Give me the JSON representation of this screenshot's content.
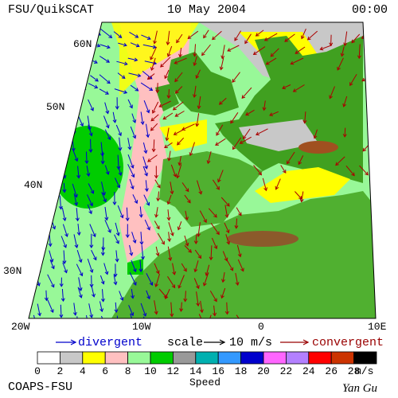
{
  "header": {
    "title": "FSU/QuikSCAT",
    "date": "10 May 2004",
    "time": "00:00"
  },
  "map": {
    "lat_labels": [
      "60N",
      "50N",
      "40N",
      "30N"
    ],
    "lon_labels": [
      "20W",
      "10W",
      "0",
      "10E"
    ]
  },
  "legend": {
    "divergent": "divergent",
    "scale": "scale",
    "scale_value": "10 m/s",
    "convergent": "convergent"
  },
  "colorbar": {
    "ticks": [
      0,
      2,
      4,
      6,
      8,
      10,
      12,
      14,
      16,
      18,
      20,
      22,
      24,
      26,
      28
    ],
    "colors": [
      "#ffffff",
      "#c8c8c8",
      "#ffff00",
      "#ffc0c0",
      "#98f898",
      "#00cc00",
      "#999999",
      "#00b0b0",
      "#3399ff",
      "#0000cc",
      "#ff66ff",
      "#b380ff",
      "#ff0000",
      "#cc3300",
      "#000000"
    ],
    "unit": "m/s",
    "title": "Speed"
  },
  "footer": {
    "left": "COAPS-FSU",
    "right": "Yan Gu"
  }
}
